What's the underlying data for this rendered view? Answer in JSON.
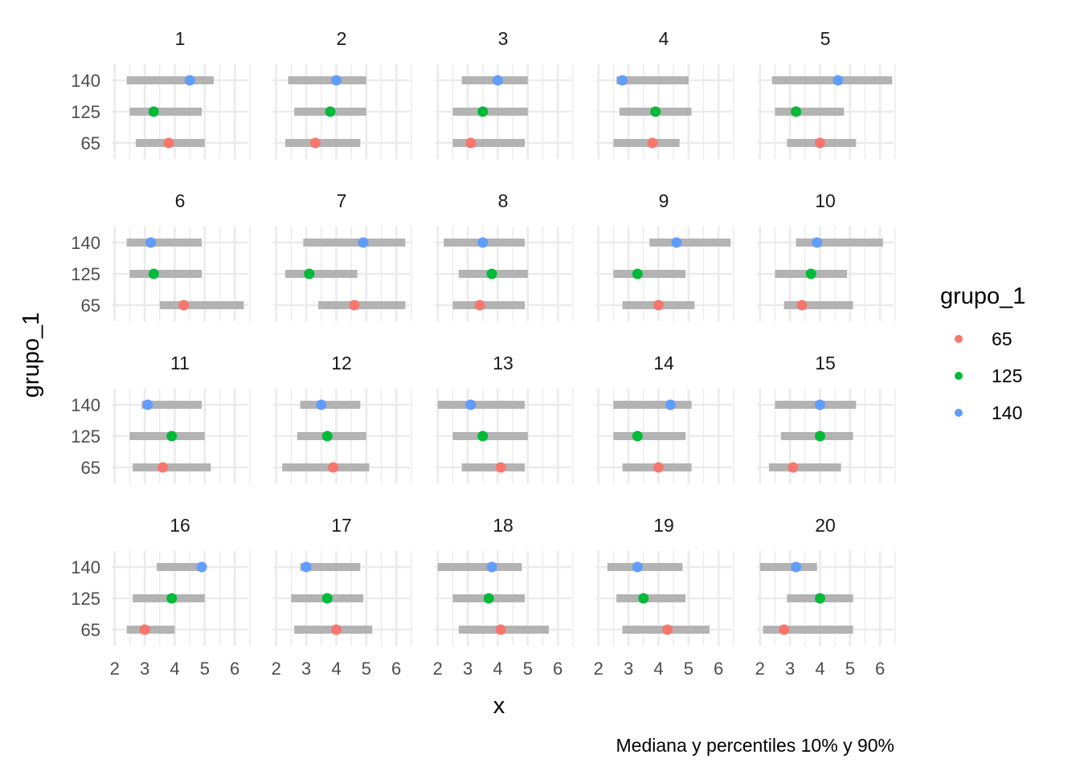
{
  "chart_data": {
    "type": "scatter",
    "layout": "facet_wrap",
    "xlabel": "x",
    "ylabel": "grupo_1",
    "caption": "Mediana y percentiles 10% y 90%",
    "xlim": [
      1.9,
      6.45
    ],
    "x_ticks": [
      "2",
      "3",
      "4",
      "5",
      "6"
    ],
    "categories": [
      "65",
      "125",
      "140"
    ],
    "legend": {
      "title": "grupo_1",
      "position": "right",
      "entries": [
        {
          "label": "65",
          "color": "#F8766D"
        },
        {
          "label": "125",
          "color": "#00BA38"
        },
        {
          "label": "140",
          "color": "#619CFF"
        }
      ]
    },
    "interval_color": "#B3B3B3",
    "grid": true,
    "facets": [
      {
        "label": "1",
        "groups": {
          "140": {
            "median": 4.5,
            "p10": 2.4,
            "p90": 5.3
          },
          "125": {
            "median": 3.3,
            "p10": 2.5,
            "p90": 4.9
          },
          "65": {
            "median": 3.8,
            "p10": 2.7,
            "p90": 5.0
          }
        }
      },
      {
        "label": "2",
        "groups": {
          "140": {
            "median": 4.0,
            "p10": 2.4,
            "p90": 5.0
          },
          "125": {
            "median": 3.8,
            "p10": 2.6,
            "p90": 5.0
          },
          "65": {
            "median": 3.3,
            "p10": 2.3,
            "p90": 4.8
          }
        }
      },
      {
        "label": "3",
        "groups": {
          "140": {
            "median": 4.0,
            "p10": 2.8,
            "p90": 5.0
          },
          "125": {
            "median": 3.5,
            "p10": 2.5,
            "p90": 5.0
          },
          "65": {
            "median": 3.1,
            "p10": 2.5,
            "p90": 4.9
          }
        }
      },
      {
        "label": "4",
        "groups": {
          "140": {
            "median": 2.8,
            "p10": 2.6,
            "p90": 5.0
          },
          "125": {
            "median": 3.9,
            "p10": 2.7,
            "p90": 5.1
          },
          "65": {
            "median": 3.8,
            "p10": 2.5,
            "p90": 4.7
          }
        }
      },
      {
        "label": "5",
        "groups": {
          "140": {
            "median": 4.6,
            "p10": 2.4,
            "p90": 6.4
          },
          "125": {
            "median": 3.2,
            "p10": 2.5,
            "p90": 4.8
          },
          "65": {
            "median": 4.0,
            "p10": 2.9,
            "p90": 5.2
          }
        }
      },
      {
        "label": "6",
        "groups": {
          "140": {
            "median": 3.2,
            "p10": 2.4,
            "p90": 4.9
          },
          "125": {
            "median": 3.3,
            "p10": 2.5,
            "p90": 4.9
          },
          "65": {
            "median": 4.3,
            "p10": 3.5,
            "p90": 6.3
          }
        }
      },
      {
        "label": "7",
        "groups": {
          "140": {
            "median": 4.9,
            "p10": 2.9,
            "p90": 6.3
          },
          "125": {
            "median": 3.1,
            "p10": 2.3,
            "p90": 4.7
          },
          "65": {
            "median": 4.6,
            "p10": 3.4,
            "p90": 6.3
          }
        }
      },
      {
        "label": "8",
        "groups": {
          "140": {
            "median": 3.5,
            "p10": 2.2,
            "p90": 4.9
          },
          "125": {
            "median": 3.8,
            "p10": 2.7,
            "p90": 5.0
          },
          "65": {
            "median": 3.4,
            "p10": 2.5,
            "p90": 4.9
          }
        }
      },
      {
        "label": "9",
        "groups": {
          "140": {
            "median": 4.6,
            "p10": 3.7,
            "p90": 6.4
          },
          "125": {
            "median": 3.3,
            "p10": 2.5,
            "p90": 4.9
          },
          "65": {
            "median": 4.0,
            "p10": 2.8,
            "p90": 5.2
          }
        }
      },
      {
        "label": "10",
        "groups": {
          "140": {
            "median": 3.9,
            "p10": 3.2,
            "p90": 6.1
          },
          "125": {
            "median": 3.7,
            "p10": 2.5,
            "p90": 4.9
          },
          "65": {
            "median": 3.4,
            "p10": 2.8,
            "p90": 5.1
          }
        }
      },
      {
        "label": "11",
        "groups": {
          "140": {
            "median": 3.1,
            "p10": 2.9,
            "p90": 4.9
          },
          "125": {
            "median": 3.9,
            "p10": 2.5,
            "p90": 5.0
          },
          "65": {
            "median": 3.6,
            "p10": 2.6,
            "p90": 5.2
          }
        }
      },
      {
        "label": "12",
        "groups": {
          "140": {
            "median": 3.5,
            "p10": 2.8,
            "p90": 4.8
          },
          "125": {
            "median": 3.7,
            "p10": 2.7,
            "p90": 5.0
          },
          "65": {
            "median": 3.9,
            "p10": 2.2,
            "p90": 5.1
          }
        }
      },
      {
        "label": "13",
        "groups": {
          "140": {
            "median": 3.1,
            "p10": 2.0,
            "p90": 4.9
          },
          "125": {
            "median": 3.5,
            "p10": 2.5,
            "p90": 5.0
          },
          "65": {
            "median": 4.1,
            "p10": 2.8,
            "p90": 4.9
          }
        }
      },
      {
        "label": "14",
        "groups": {
          "140": {
            "median": 4.4,
            "p10": 2.5,
            "p90": 5.1
          },
          "125": {
            "median": 3.3,
            "p10": 2.5,
            "p90": 4.9
          },
          "65": {
            "median": 4.0,
            "p10": 2.8,
            "p90": 5.1
          }
        }
      },
      {
        "label": "15",
        "groups": {
          "140": {
            "median": 4.0,
            "p10": 2.5,
            "p90": 5.2
          },
          "125": {
            "median": 4.0,
            "p10": 2.7,
            "p90": 5.1
          },
          "65": {
            "median": 3.1,
            "p10": 2.3,
            "p90": 4.7
          }
        }
      },
      {
        "label": "16",
        "groups": {
          "140": {
            "median": 4.9,
            "p10": 3.4,
            "p90": 5.0
          },
          "125": {
            "median": 3.9,
            "p10": 2.6,
            "p90": 5.0
          },
          "65": {
            "median": 3.0,
            "p10": 2.4,
            "p90": 4.0
          }
        }
      },
      {
        "label": "17",
        "groups": {
          "140": {
            "median": 3.0,
            "p10": 2.8,
            "p90": 4.8
          },
          "125": {
            "median": 3.7,
            "p10": 2.5,
            "p90": 4.9
          },
          "65": {
            "median": 4.0,
            "p10": 2.6,
            "p90": 5.2
          }
        }
      },
      {
        "label": "18",
        "groups": {
          "140": {
            "median": 3.8,
            "p10": 2.0,
            "p90": 4.8
          },
          "125": {
            "median": 3.7,
            "p10": 2.5,
            "p90": 4.9
          },
          "65": {
            "median": 4.1,
            "p10": 2.7,
            "p90": 5.7
          }
        }
      },
      {
        "label": "19",
        "groups": {
          "140": {
            "median": 3.3,
            "p10": 2.3,
            "p90": 4.8
          },
          "125": {
            "median": 3.5,
            "p10": 2.6,
            "p90": 4.9
          },
          "65": {
            "median": 4.3,
            "p10": 2.8,
            "p90": 5.7
          }
        }
      },
      {
        "label": "20",
        "groups": {
          "140": {
            "median": 3.2,
            "p10": 2.0,
            "p90": 3.9
          },
          "125": {
            "median": 4.0,
            "p10": 2.9,
            "p90": 5.1
          },
          "65": {
            "median": 2.8,
            "p10": 2.1,
            "p90": 5.1
          }
        }
      }
    ]
  }
}
